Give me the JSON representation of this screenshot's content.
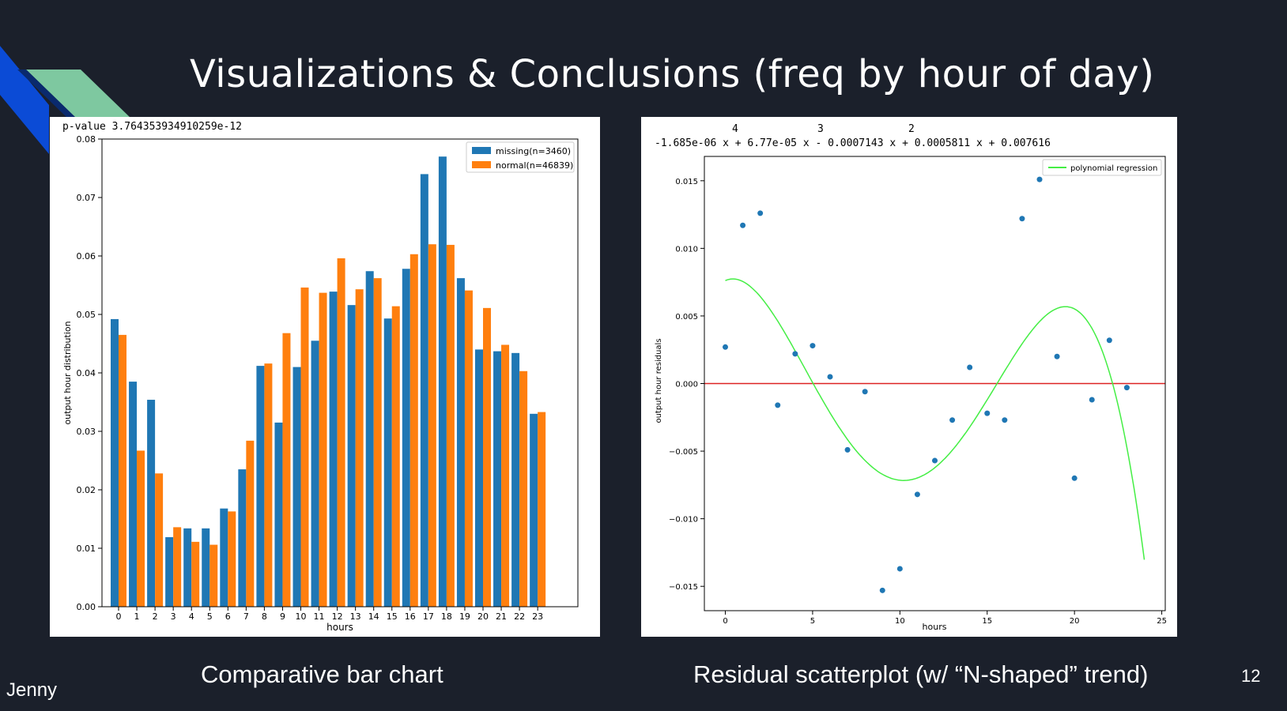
{
  "slide": {
    "title": "Visualizations & Conclusions (freq by hour of day)",
    "caption_left": "Comparative bar chart",
    "caption_right": "Residual scatterplot (w/ “N-shaped” trend)",
    "author": "Jenny",
    "page_number": "12",
    "colors": {
      "background": "#1b202b",
      "accent_blue": "#0b4bd6",
      "accent_green": "#7ec8a0"
    }
  },
  "chart_data": [
    {
      "type": "bar",
      "annotation": "p-value 3.764353934910259e-12",
      "xlabel": "hours",
      "ylabel": "output hour distribution",
      "ylim": [
        0,
        0.08
      ],
      "yticks": [
        "0.00",
        "0.01",
        "0.02",
        "0.03",
        "0.04",
        "0.05",
        "0.06",
        "0.07",
        "0.08"
      ],
      "categories": [
        "0",
        "1",
        "2",
        "3",
        "4",
        "5",
        "6",
        "7",
        "8",
        "9",
        "10",
        "11",
        "12",
        "13",
        "14",
        "15",
        "16",
        "17",
        "18",
        "19",
        "20",
        "21",
        "22",
        "23"
      ],
      "legend_position": "top-right",
      "series": [
        {
          "name": "missing(n=3460)",
          "color": "#1f77b4",
          "values": [
            0.0492,
            0.0385,
            0.0354,
            0.0119,
            0.0134,
            0.0134,
            0.0168,
            0.0235,
            0.0412,
            0.0315,
            0.041,
            0.0455,
            0.0539,
            0.0516,
            0.0574,
            0.0493,
            0.0578,
            0.074,
            0.077,
            0.0562,
            0.044,
            0.0437,
            0.0434,
            0.033
          ]
        },
        {
          "name": "normal(n=46839)",
          "color": "#ff7f0e",
          "values": [
            0.0465,
            0.0267,
            0.0228,
            0.0136,
            0.0111,
            0.0106,
            0.0163,
            0.0284,
            0.0416,
            0.0468,
            0.0546,
            0.0537,
            0.0596,
            0.0543,
            0.0562,
            0.0514,
            0.0603,
            0.062,
            0.0619,
            0.0541,
            0.0511,
            0.0448,
            0.0403,
            0.0333
          ]
        }
      ]
    },
    {
      "type": "scatter",
      "equation_exponents": [
        "4",
        "3",
        "2"
      ],
      "equation": "-1.685e-06 x + 6.77e-05 x - 0.0007143 x + 0.0005811 x + 0.007616",
      "coefficients": [
        -1.685e-06,
        6.77e-05,
        -0.0007143,
        0.0005811,
        0.007616
      ],
      "xlabel": "hours",
      "ylabel": "output hour residuals",
      "xlim": [
        -1.2,
        25.2
      ],
      "ylim": [
        -0.0168,
        0.0168
      ],
      "xticks": [
        0,
        5,
        10,
        15,
        20,
        25
      ],
      "yticks": [
        0.015,
        0.01,
        0.005,
        0.0,
        -0.005,
        -0.01,
        -0.015
      ],
      "ytick_labels": [
        "0.015",
        "0.010",
        "0.005",
        "0.000",
        "−0.005",
        "−0.010",
        "−0.015"
      ],
      "legend_position": "top-right",
      "legend": "polynomial regression",
      "point_color": "#1f77b4",
      "curve_color": "#44ee44",
      "zero_line_color": "#dd2222",
      "curve_x_range": [
        0,
        24
      ],
      "points": {
        "x": [
          0,
          1,
          2,
          3,
          4,
          5,
          6,
          7,
          8,
          9,
          10,
          11,
          12,
          13,
          14,
          15,
          16,
          17,
          18,
          19,
          20,
          21,
          22,
          23
        ],
        "y": [
          0.0027,
          0.0117,
          0.0126,
          -0.0016,
          0.0022,
          0.0028,
          0.0005,
          -0.0049,
          -0.0006,
          -0.0153,
          -0.0137,
          -0.0082,
          -0.0057,
          -0.0027,
          0.0012,
          -0.0022,
          -0.0027,
          0.0122,
          0.0151,
          0.002,
          -0.007,
          -0.0012,
          0.0032,
          -0.0003
        ]
      }
    }
  ]
}
